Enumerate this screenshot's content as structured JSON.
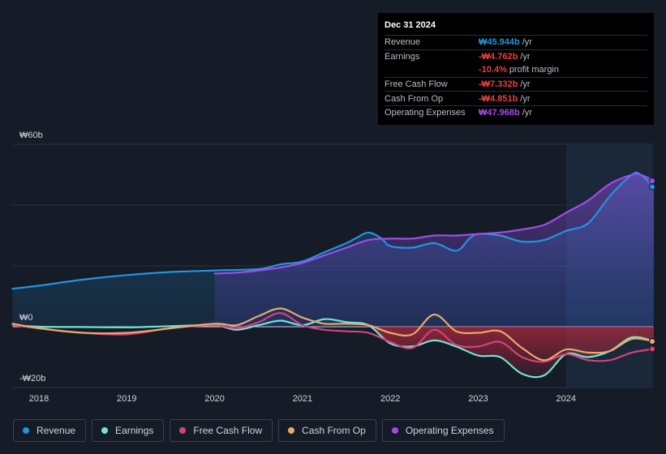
{
  "tooltip": {
    "date": "Dec 31 2024",
    "rows": [
      {
        "label": "Revenue",
        "value": "₩45.944b",
        "unit": "/yr",
        "color": "#2394df"
      },
      {
        "label": "Earnings",
        "value": "-₩4.762b",
        "unit": "/yr",
        "color": "#e64141"
      },
      {
        "label": "",
        "value": "-10.4%",
        "unit": "profit margin",
        "color": "#e64141"
      },
      {
        "label": "Free Cash Flow",
        "value": "-₩7.332b",
        "unit": "/yr",
        "color": "#e64141"
      },
      {
        "label": "Cash From Op",
        "value": "-₩4.851b",
        "unit": "/yr",
        "color": "#e64141"
      },
      {
        "label": "Operating Expenses",
        "value": "₩47.968b",
        "unit": "/yr",
        "color": "#a24ce8"
      }
    ]
  },
  "legend": [
    {
      "label": "Revenue",
      "color": "#2394df"
    },
    {
      "label": "Earnings",
      "color": "#6ce5d3"
    },
    {
      "label": "Free Cash Flow",
      "color": "#d2437a"
    },
    {
      "label": "Cash From Op",
      "color": "#e9a96a"
    },
    {
      "label": "Operating Expenses",
      "color": "#a24ce8"
    }
  ],
  "chart_data": {
    "type": "line",
    "title": "",
    "unit": "KRW billions",
    "ylim": [
      -20,
      60
    ],
    "xlim": [
      2017.7,
      2025.0
    ],
    "y_ticks": [
      {
        "value": 60,
        "label": "₩60b"
      },
      {
        "value": 0,
        "label": "₩0"
      },
      {
        "value": -20,
        "label": "-₩20b"
      }
    ],
    "x_ticks": [
      2018,
      2019,
      2020,
      2021,
      2022,
      2023,
      2024
    ],
    "forecast_start": 2024.0,
    "series": [
      {
        "name": "Revenue",
        "color": "#2394df",
        "fill": true,
        "x": [
          2017.7,
          2018.0,
          2018.5,
          2019.0,
          2019.5,
          2020.0,
          2020.5,
          2020.75,
          2021.0,
          2021.25,
          2021.5,
          2021.6,
          2021.75,
          2021.9,
          2022.0,
          2022.25,
          2022.5,
          2022.75,
          2022.9,
          2023.0,
          2023.25,
          2023.5,
          2023.75,
          2024.0,
          2024.25,
          2024.5,
          2024.75,
          2024.85,
          2025.0
        ],
        "values": [
          12.5,
          13.5,
          15.5,
          17.0,
          18.0,
          18.5,
          19.0,
          20.5,
          21.5,
          24.5,
          27.5,
          29.0,
          31.0,
          29.0,
          26.5,
          26.0,
          27.5,
          25.0,
          29.0,
          30.5,
          30.0,
          28.0,
          28.5,
          31.5,
          34.0,
          43.0,
          50.0,
          50.0,
          46.0
        ]
      },
      {
        "name": "Earnings",
        "color": "#6ce5d3",
        "fill": false,
        "x": [
          2017.7,
          2018.0,
          2018.5,
          2019.0,
          2019.5,
          2020.0,
          2020.25,
          2020.5,
          2020.75,
          2021.0,
          2021.25,
          2021.5,
          2021.75,
          2022.0,
          2022.25,
          2022.5,
          2022.75,
          2023.0,
          2023.25,
          2023.5,
          2023.75,
          2024.0,
          2024.25,
          2024.5,
          2024.75,
          2025.0
        ],
        "values": [
          0.5,
          0.0,
          -0.1,
          -0.2,
          0.2,
          0.5,
          -1.0,
          0.5,
          2.0,
          0.5,
          2.5,
          1.5,
          0.5,
          -5.5,
          -6.5,
          -4.5,
          -6.5,
          -9.5,
          -10.0,
          -15.5,
          -16.0,
          -9.0,
          -10.0,
          -8.0,
          -3.5,
          -4.76
        ]
      },
      {
        "name": "Free Cash Flow",
        "color": "#d2437a",
        "fill": false,
        "x": [
          2017.7,
          2018.0,
          2018.5,
          2019.0,
          2019.5,
          2020.0,
          2020.25,
          2020.5,
          2020.75,
          2021.0,
          2021.25,
          2021.5,
          2021.75,
          2022.0,
          2022.25,
          2022.5,
          2022.75,
          2023.0,
          2023.25,
          2023.5,
          2023.75,
          2024.0,
          2024.25,
          2024.5,
          2024.75,
          2025.0
        ],
        "values": [
          0.5,
          -0.5,
          -2.0,
          -2.5,
          -0.5,
          0.5,
          -0.5,
          1.5,
          4.5,
          0.5,
          -1.0,
          -1.5,
          -2.0,
          -5.0,
          -7.0,
          -1.0,
          -6.0,
          -6.5,
          -5.0,
          -10.0,
          -11.5,
          -9.0,
          -11.0,
          -11.0,
          -8.5,
          -7.33
        ]
      },
      {
        "name": "Cash From Op",
        "color": "#e9a96a",
        "fill": false,
        "x": [
          2017.7,
          2018.0,
          2018.5,
          2019.0,
          2019.5,
          2020.0,
          2020.25,
          2020.5,
          2020.75,
          2021.0,
          2021.25,
          2021.5,
          2021.75,
          2022.0,
          2022.25,
          2022.5,
          2022.75,
          2023.0,
          2023.25,
          2023.5,
          2023.75,
          2024.0,
          2024.25,
          2024.5,
          2024.75,
          2025.0
        ],
        "values": [
          1.0,
          -0.5,
          -2.0,
          -2.0,
          -0.5,
          1.0,
          0.5,
          3.5,
          6.0,
          3.0,
          1.0,
          1.0,
          0.5,
          -2.0,
          -2.5,
          4.0,
          -1.5,
          -2.0,
          -1.5,
          -7.0,
          -11.0,
          -7.5,
          -8.5,
          -8.0,
          -4.0,
          -4.85
        ]
      },
      {
        "name": "Operating Expenses",
        "color": "#a24ce8",
        "fill": true,
        "x": [
          2020.0,
          2020.25,
          2020.5,
          2020.75,
          2021.0,
          2021.25,
          2021.5,
          2021.75,
          2022.0,
          2022.25,
          2022.5,
          2022.75,
          2023.0,
          2023.25,
          2023.5,
          2023.75,
          2024.0,
          2024.25,
          2024.5,
          2024.75,
          2024.85,
          2025.0
        ],
        "values": [
          17.5,
          17.8,
          18.5,
          19.5,
          21.0,
          23.5,
          26.0,
          28.5,
          29.0,
          29.0,
          30.0,
          30.0,
          30.5,
          31.0,
          32.0,
          33.5,
          37.5,
          41.5,
          47.0,
          50.0,
          50.0,
          47.97
        ]
      }
    ]
  }
}
